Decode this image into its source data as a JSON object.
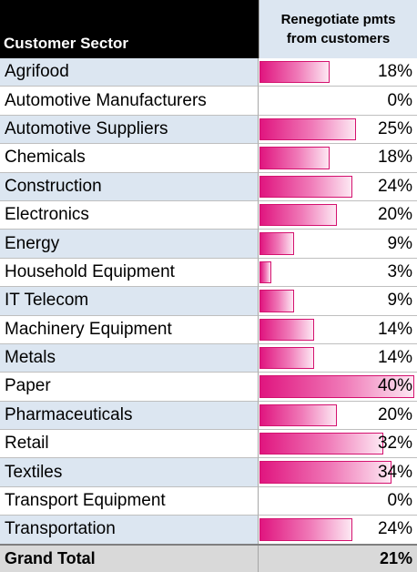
{
  "table": {
    "header_sector": "Customer Sector",
    "header_metric": "Renegotiate pmts from customers",
    "total_label": "Grand Total",
    "total_value": "21%"
  },
  "colors": {
    "bar_start": "#e0157f",
    "bar_end": "#fde8f3",
    "band": "#dce6f1",
    "header_bg": "#000000",
    "total_bg": "#d9d9d9"
  },
  "chart_data": {
    "type": "bar",
    "title": "",
    "xlabel": "",
    "ylabel": "Renegotiate pmts from customers",
    "xlim": [
      0,
      40
    ],
    "categories": [
      "Agrifood",
      "Automotive Manufacturers",
      "Automotive Suppliers",
      "Chemicals",
      "Construction",
      "Electronics",
      "Energy",
      "Household Equipment",
      "IT Telecom",
      "Machinery Equipment",
      "Metals",
      "Paper",
      "Pharmaceuticals",
      "Retail",
      "Textiles",
      "Transport Equipment",
      "Transportation"
    ],
    "values": [
      18,
      0,
      25,
      18,
      24,
      20,
      9,
      3,
      9,
      14,
      14,
      40,
      20,
      32,
      34,
      0,
      24
    ],
    "labels": [
      "18%",
      "0%",
      "25%",
      "18%",
      "24%",
      "20%",
      "9%",
      "3%",
      "9%",
      "14%",
      "14%",
      "40%",
      "20%",
      "32%",
      "34%",
      "0%",
      "24%"
    ]
  }
}
